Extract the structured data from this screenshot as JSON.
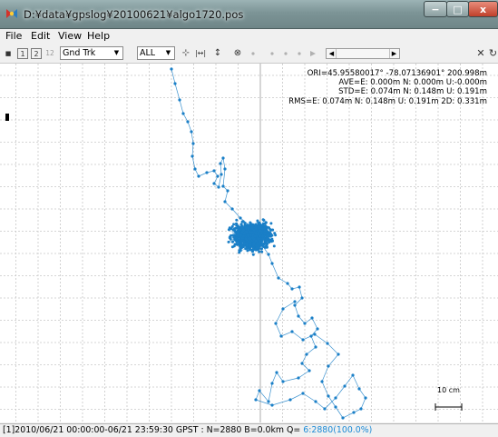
{
  "window": {
    "title": "D:¥data¥gpslog¥20100621¥algo1720.pos",
    "minimize_label": "−",
    "maximize_label": "□",
    "close_label": "x"
  },
  "menu": {
    "items": [
      {
        "label": "File"
      },
      {
        "label": "Edit"
      },
      {
        "label": "View"
      },
      {
        "label": "Help"
      }
    ]
  },
  "toolbar": {
    "stop_label": "■",
    "solution1_label": "1",
    "solution2_label": "2",
    "solution12_label": "12",
    "plot_type_value": "Gnd Trk",
    "quality_value": "ALL",
    "fit_horizontal_label": "⊹",
    "fit_horiz_arrows_label": "|↔|",
    "fit_vertical_label": "↕",
    "center_origin_label": "⊗",
    "slider_left": "◀",
    "slider_right": "▶",
    "close_label": "✕",
    "reload_label": "↻"
  },
  "solution_info": {
    "ori": "ORI=45.95580017° -78.07136901° 200.998m",
    "ave": "AVE=E: 0.000m N: 0.000m U:-0.000m",
    "std": "STD=E: 0.074m N: 0.148m U: 0.191m",
    "rms": "RMS=E: 0.074m N: 0.148m U: 0.191m 2D: 0.331m"
  },
  "scale_bar": {
    "label": "10 cm"
  },
  "status": {
    "text": "[1]2010/06/21 00:00:00-06/21 23:59:30 GPST : N=2880 B=0.0km Q=",
    "quality": "6:2880(100.0%)"
  },
  "colors": {
    "track": "#1a7fc7",
    "grid": "#c8c8c8",
    "axis": "#9a9a9a",
    "quality_text": "#1b8ad6"
  },
  "icons": {
    "app": "satellite-dish-icon"
  }
}
